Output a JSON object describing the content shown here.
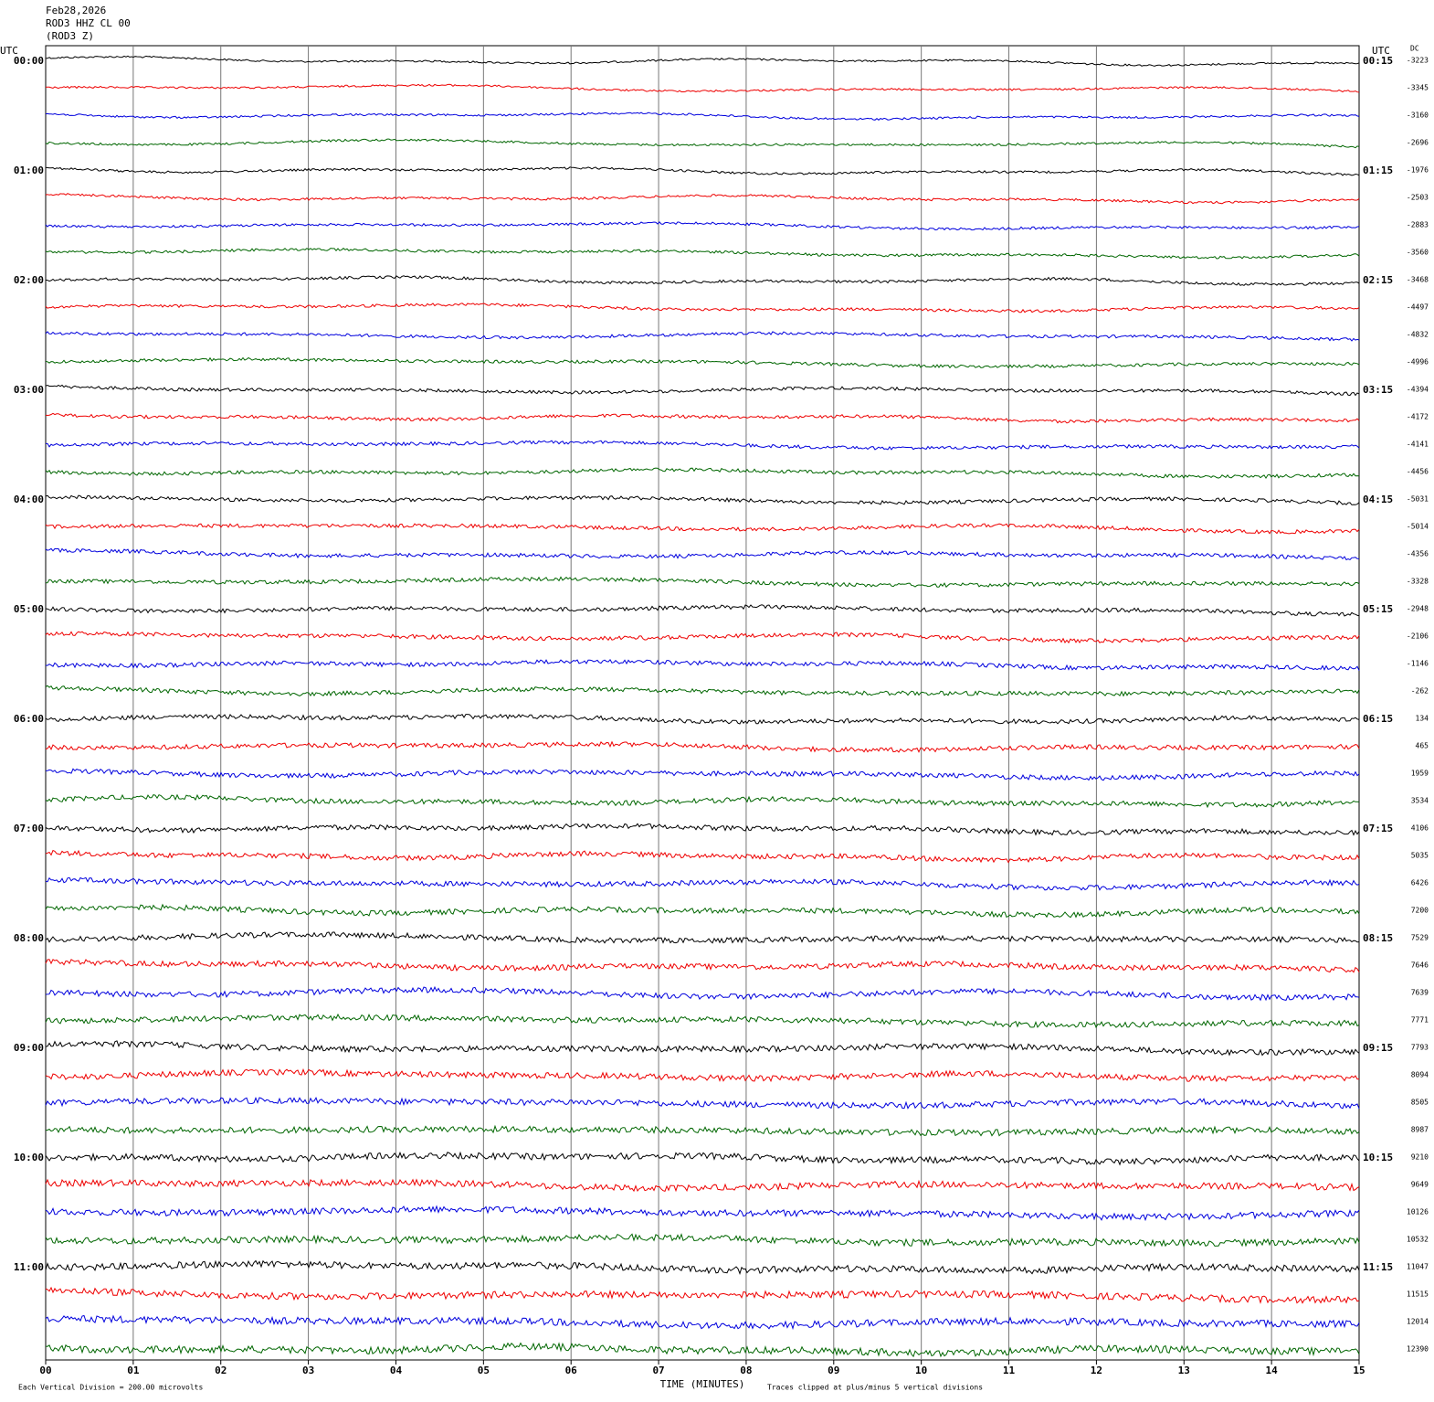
{
  "header": {
    "date": "Feb28,2026",
    "station": "ROD3 HHZ CL 00",
    "component": "(ROD3 Z)"
  },
  "left_axis": {
    "title": "UTC",
    "labels": [
      "00:00",
      "01:00",
      "02:00",
      "03:00",
      "04:00",
      "05:00",
      "06:00",
      "07:00",
      "08:00",
      "09:00",
      "10:00",
      "11:00"
    ]
  },
  "right_axis": {
    "title": "UTC",
    "labels": [
      "00:15",
      "01:15",
      "02:15",
      "03:15",
      "04:15",
      "05:15",
      "06:15",
      "07:15",
      "08:15",
      "09:15",
      "10:15",
      "11:15"
    ]
  },
  "dc": {
    "title": "DC",
    "values": [
      -3223,
      -3345,
      -3160,
      -2696,
      -1976,
      -2503,
      -2883,
      -3560,
      -3468,
      -4497,
      -4832,
      -4996,
      -4394,
      -4172,
      -4141,
      -4456,
      -5031,
      -5014,
      -4356,
      -3328,
      -2948,
      -2106,
      -1146,
      -262,
      134,
      465,
      1959,
      3534,
      4106,
      5035,
      6426,
      7200,
      7529,
      7646,
      7639,
      7771,
      7793,
      8094,
      8505,
      8987,
      9210,
      9649,
      10126,
      10532,
      11047,
      11515,
      12014,
      12390
    ]
  },
  "time_axis": {
    "title": "TIME (MINUTES)",
    "ticks": [
      "00",
      "01",
      "02",
      "03",
      "04",
      "05",
      "06",
      "07",
      "08",
      "09",
      "10",
      "11",
      "12",
      "13",
      "14",
      "15"
    ]
  },
  "footer": {
    "scale": "Each Vertical Division =  200.00 microvolts",
    "clip": "Traces clipped at plus/minus 5 vertical divisions"
  }
}
